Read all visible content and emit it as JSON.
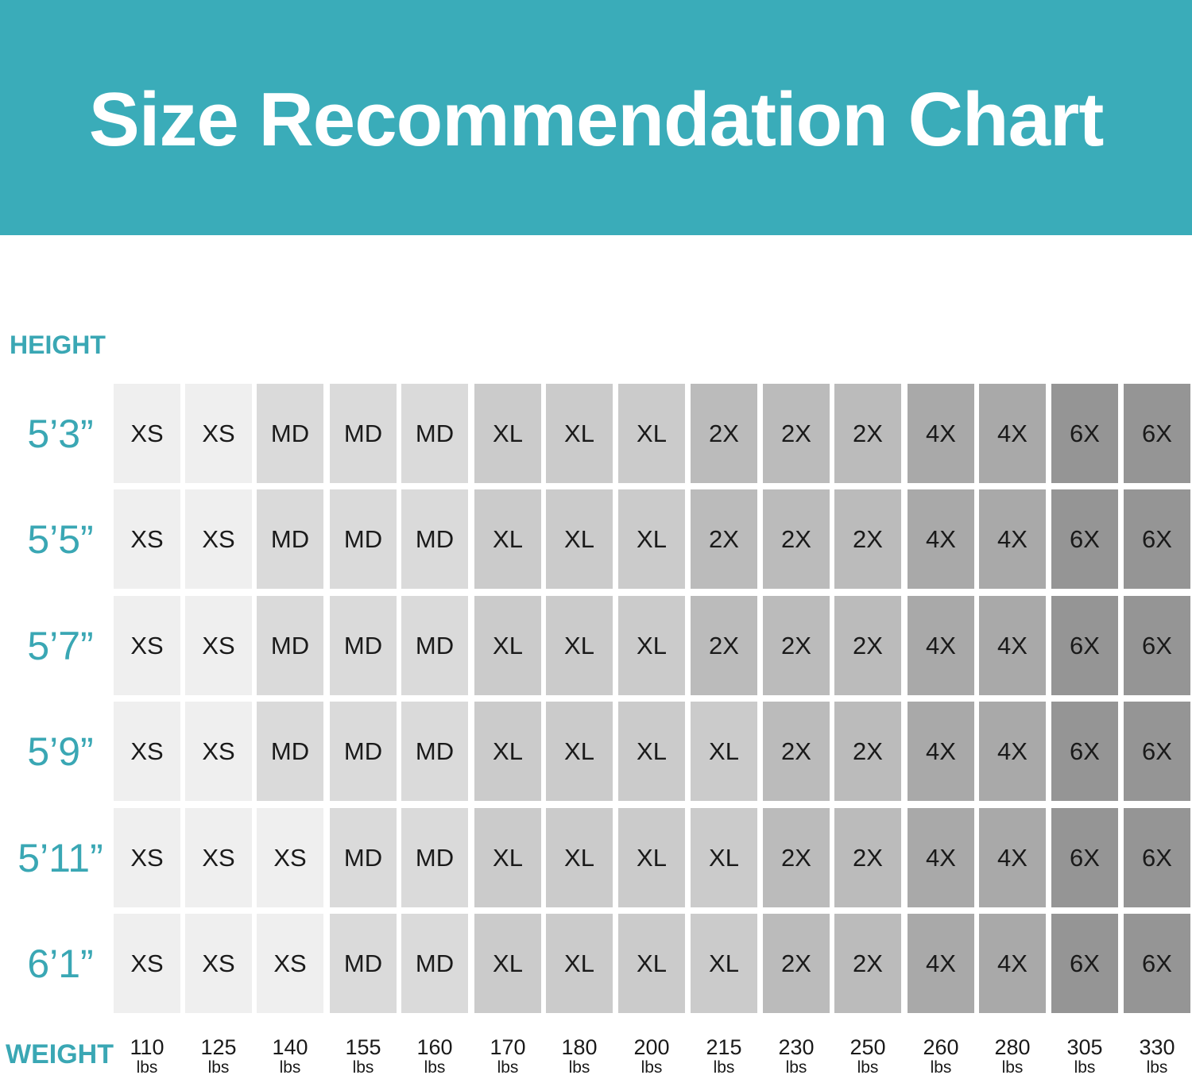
{
  "chart_data": {
    "type": "table",
    "title": "Size Recommendation Chart",
    "row_axis_label": "HEIGHT",
    "column_axis_label": "WEIGHT",
    "weight_unit": "lbs",
    "heights": [
      "5’3”",
      "5’5”",
      "5’7”",
      "5’9”",
      "5’11”",
      "6’1”"
    ],
    "weights": [
      "110",
      "125",
      "140",
      "155",
      "160",
      "170",
      "180",
      "200",
      "215",
      "230",
      "250",
      "260",
      "280",
      "305",
      "330"
    ],
    "sizes": [
      [
        "XS",
        "XS",
        "MD",
        "MD",
        "MD",
        "XL",
        "XL",
        "XL",
        "2X",
        "2X",
        "2X",
        "4X",
        "4X",
        "6X",
        "6X"
      ],
      [
        "XS",
        "XS",
        "MD",
        "MD",
        "MD",
        "XL",
        "XL",
        "XL",
        "2X",
        "2X",
        "2X",
        "4X",
        "4X",
        "6X",
        "6X"
      ],
      [
        "XS",
        "XS",
        "MD",
        "MD",
        "MD",
        "XL",
        "XL",
        "XL",
        "2X",
        "2X",
        "2X",
        "4X",
        "4X",
        "6X",
        "6X"
      ],
      [
        "XS",
        "XS",
        "MD",
        "MD",
        "MD",
        "XL",
        "XL",
        "XL",
        "XL",
        "2X",
        "2X",
        "4X",
        "4X",
        "6X",
        "6X"
      ],
      [
        "XS",
        "XS",
        "XS",
        "MD",
        "MD",
        "XL",
        "XL",
        "XL",
        "XL",
        "2X",
        "2X",
        "4X",
        "4X",
        "6X",
        "6X"
      ],
      [
        "XS",
        "XS",
        "XS",
        "MD",
        "MD",
        "XL",
        "XL",
        "XL",
        "XL",
        "2X",
        "2X",
        "4X",
        "4X",
        "6X",
        "6X"
      ]
    ],
    "size_colors": {
      "XS": "#efefef",
      "MD": "#dadada",
      "XL": "#cbcbcb",
      "2X": "#bbbbbb",
      "4X": "#a9a9a9",
      "6X": "#959595"
    },
    "accent_color": "#3aacb9"
  }
}
